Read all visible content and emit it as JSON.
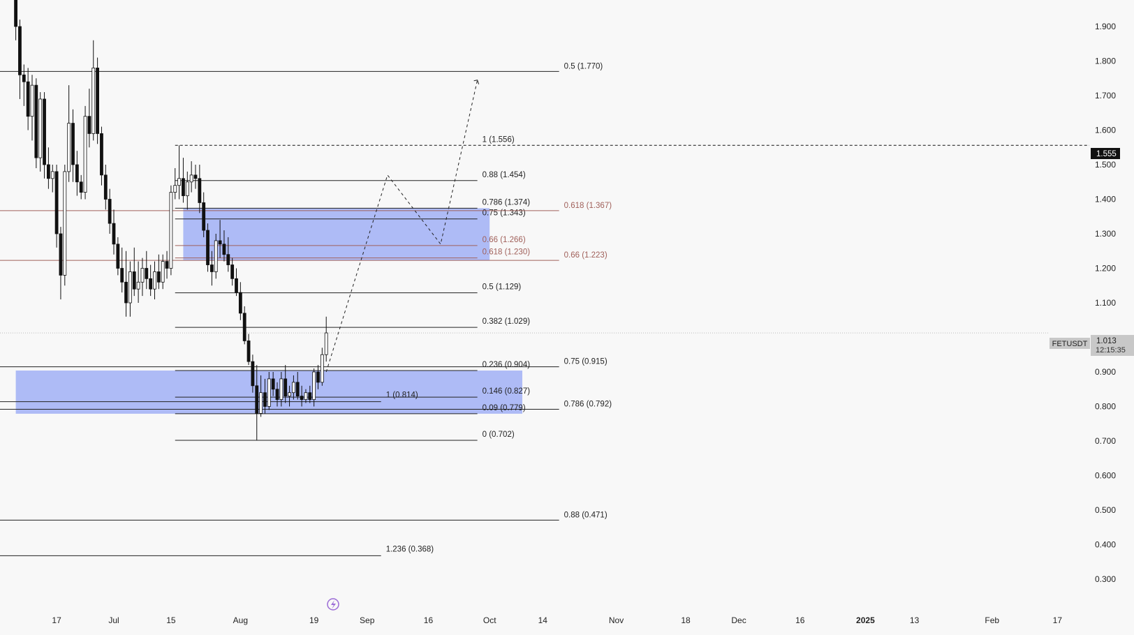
{
  "chart_data": {
    "type": "candlestick",
    "symbol": "FETUSDT",
    "last_price": "1.013",
    "countdown": "12:15:35",
    "marked_price": "1.555",
    "y_axis": {
      "ticks": [
        "1.900",
        "1.800",
        "1.700",
        "1.600",
        "1.500",
        "1.400",
        "1.300",
        "1.200",
        "1.100",
        "0.900",
        "0.800",
        "0.700",
        "0.600",
        "0.500",
        "0.400",
        "0.300"
      ],
      "ylim": [
        0.27,
        1.93
      ]
    },
    "x_axis": {
      "ticks": [
        {
          "label": "17",
          "date": "2024-06-17",
          "bold": false
        },
        {
          "label": "Jul",
          "date": "2024-07-01",
          "bold": false
        },
        {
          "label": "15",
          "date": "2024-07-15",
          "bold": false
        },
        {
          "label": "Aug",
          "date": "2024-08-01",
          "bold": false
        },
        {
          "label": "19",
          "date": "2024-08-19",
          "bold": false
        },
        {
          "label": "Sep",
          "date": "2024-09-01",
          "bold": false
        },
        {
          "label": "16",
          "date": "2024-09-16",
          "bold": false
        },
        {
          "label": "Oct",
          "date": "2024-10-01",
          "bold": false
        },
        {
          "label": "14",
          "date": "2024-10-14",
          "bold": false
        },
        {
          "label": "Nov",
          "date": "2024-11-01",
          "bold": false
        },
        {
          "label": "18",
          "date": "2024-11-18",
          "bold": false
        },
        {
          "label": "Dec",
          "date": "2024-12-01",
          "bold": false
        },
        {
          "label": "16",
          "date": "2024-12-16",
          "bold": false
        },
        {
          "label": "2025",
          "date": "2025-01-01",
          "bold": true
        },
        {
          "label": "13",
          "date": "2025-01-13",
          "bold": false
        },
        {
          "label": "Feb",
          "date": "2025-02-01",
          "bold": false
        },
        {
          "label": "17",
          "date": "2025-02-17",
          "bold": false
        }
      ]
    },
    "candles": [
      {
        "date": "2024-06-07",
        "open": 2.06,
        "high": 2.12,
        "low": 1.86,
        "close": 1.9
      },
      {
        "date": "2024-06-08",
        "open": 1.9,
        "high": 1.92,
        "low": 1.69,
        "close": 1.76
      },
      {
        "date": "2024-06-09",
        "open": 1.76,
        "high": 1.79,
        "low": 1.67,
        "close": 1.74
      },
      {
        "date": "2024-06-10",
        "open": 1.74,
        "high": 1.78,
        "low": 1.6,
        "close": 1.64
      },
      {
        "date": "2024-06-11",
        "open": 1.64,
        "high": 1.76,
        "low": 1.57,
        "close": 1.73
      },
      {
        "date": "2024-06-12",
        "open": 1.73,
        "high": 1.75,
        "low": 1.49,
        "close": 1.52
      },
      {
        "date": "2024-06-13",
        "open": 1.52,
        "high": 1.71,
        "low": 1.48,
        "close": 1.69
      },
      {
        "date": "2024-06-14",
        "open": 1.69,
        "high": 1.71,
        "low": 1.46,
        "close": 1.5
      },
      {
        "date": "2024-06-15",
        "open": 1.5,
        "high": 1.55,
        "low": 1.43,
        "close": 1.46
      },
      {
        "date": "2024-06-16",
        "open": 1.46,
        "high": 1.5,
        "low": 1.42,
        "close": 1.48
      },
      {
        "date": "2024-06-17",
        "open": 1.48,
        "high": 1.5,
        "low": 1.26,
        "close": 1.3
      },
      {
        "date": "2024-06-18",
        "open": 1.3,
        "high": 1.32,
        "low": 1.11,
        "close": 1.18
      },
      {
        "date": "2024-06-19",
        "open": 1.18,
        "high": 1.5,
        "low": 1.15,
        "close": 1.48
      },
      {
        "date": "2024-06-20",
        "open": 1.48,
        "high": 1.73,
        "low": 1.45,
        "close": 1.62
      },
      {
        "date": "2024-06-21",
        "open": 1.62,
        "high": 1.66,
        "low": 1.45,
        "close": 1.5
      },
      {
        "date": "2024-06-22",
        "open": 1.5,
        "high": 1.54,
        "low": 1.41,
        "close": 1.45
      },
      {
        "date": "2024-06-23",
        "open": 1.45,
        "high": 1.47,
        "low": 1.4,
        "close": 1.42
      },
      {
        "date": "2024-06-24",
        "open": 1.42,
        "high": 1.67,
        "low": 1.4,
        "close": 1.64
      },
      {
        "date": "2024-06-25",
        "open": 1.64,
        "high": 1.72,
        "low": 1.55,
        "close": 1.59
      },
      {
        "date": "2024-06-26",
        "open": 1.59,
        "high": 1.86,
        "low": 1.57,
        "close": 1.78
      },
      {
        "date": "2024-06-27",
        "open": 1.78,
        "high": 1.81,
        "low": 1.56,
        "close": 1.59
      },
      {
        "date": "2024-06-28",
        "open": 1.59,
        "high": 1.61,
        "low": 1.44,
        "close": 1.47
      },
      {
        "date": "2024-06-29",
        "open": 1.47,
        "high": 1.5,
        "low": 1.37,
        "close": 1.4
      },
      {
        "date": "2024-06-30",
        "open": 1.4,
        "high": 1.43,
        "low": 1.3,
        "close": 1.33
      },
      {
        "date": "2024-07-01",
        "open": 1.33,
        "high": 1.37,
        "low": 1.24,
        "close": 1.27
      },
      {
        "date": "2024-07-02",
        "open": 1.27,
        "high": 1.29,
        "low": 1.18,
        "close": 1.2
      },
      {
        "date": "2024-07-03",
        "open": 1.2,
        "high": 1.26,
        "low": 1.13,
        "close": 1.16
      },
      {
        "date": "2024-07-04",
        "open": 1.16,
        "high": 1.25,
        "low": 1.06,
        "close": 1.1
      },
      {
        "date": "2024-07-05",
        "open": 1.1,
        "high": 1.22,
        "low": 1.06,
        "close": 1.19
      },
      {
        "date": "2024-07-06",
        "open": 1.19,
        "high": 1.26,
        "low": 1.12,
        "close": 1.14
      },
      {
        "date": "2024-07-07",
        "open": 1.14,
        "high": 1.22,
        "low": 1.1,
        "close": 1.16
      },
      {
        "date": "2024-07-08",
        "open": 1.16,
        "high": 1.23,
        "low": 1.12,
        "close": 1.2
      },
      {
        "date": "2024-07-09",
        "open": 1.2,
        "high": 1.25,
        "low": 1.14,
        "close": 1.17
      },
      {
        "date": "2024-07-10",
        "open": 1.17,
        "high": 1.21,
        "low": 1.12,
        "close": 1.14
      },
      {
        "date": "2024-07-11",
        "open": 1.14,
        "high": 1.22,
        "low": 1.11,
        "close": 1.19
      },
      {
        "date": "2024-07-12",
        "open": 1.19,
        "high": 1.24,
        "low": 1.14,
        "close": 1.16
      },
      {
        "date": "2024-07-13",
        "open": 1.16,
        "high": 1.24,
        "low": 1.14,
        "close": 1.22
      },
      {
        "date": "2024-07-14",
        "open": 1.22,
        "high": 1.25,
        "low": 1.17,
        "close": 1.2
      },
      {
        "date": "2024-07-15",
        "open": 1.2,
        "high": 1.44,
        "low": 1.18,
        "close": 1.42
      },
      {
        "date": "2024-07-16",
        "open": 1.42,
        "high": 1.49,
        "low": 1.4,
        "close": 1.44
      },
      {
        "date": "2024-07-17",
        "open": 1.44,
        "high": 1.556,
        "low": 1.4,
        "close": 1.46
      },
      {
        "date": "2024-07-18",
        "open": 1.46,
        "high": 1.52,
        "low": 1.39,
        "close": 1.41
      },
      {
        "date": "2024-07-19",
        "open": 1.41,
        "high": 1.48,
        "low": 1.37,
        "close": 1.45
      },
      {
        "date": "2024-07-20",
        "open": 1.45,
        "high": 1.51,
        "low": 1.42,
        "close": 1.47
      },
      {
        "date": "2024-07-21",
        "open": 1.47,
        "high": 1.5,
        "low": 1.43,
        "close": 1.46
      },
      {
        "date": "2024-07-22",
        "open": 1.46,
        "high": 1.5,
        "low": 1.36,
        "close": 1.39
      },
      {
        "date": "2024-07-23",
        "open": 1.39,
        "high": 1.42,
        "low": 1.29,
        "close": 1.31
      },
      {
        "date": "2024-07-24",
        "open": 1.31,
        "high": 1.33,
        "low": 1.19,
        "close": 1.21
      },
      {
        "date": "2024-07-25",
        "open": 1.21,
        "high": 1.25,
        "low": 1.15,
        "close": 1.19
      },
      {
        "date": "2024-07-26",
        "open": 1.19,
        "high": 1.3,
        "low": 1.17,
        "close": 1.28
      },
      {
        "date": "2024-07-27",
        "open": 1.28,
        "high": 1.34,
        "low": 1.23,
        "close": 1.27
      },
      {
        "date": "2024-07-28",
        "open": 1.27,
        "high": 1.31,
        "low": 1.22,
        "close": 1.24
      },
      {
        "date": "2024-07-29",
        "open": 1.24,
        "high": 1.29,
        "low": 1.19,
        "close": 1.21
      },
      {
        "date": "2024-07-30",
        "open": 1.21,
        "high": 1.23,
        "low": 1.15,
        "close": 1.17
      },
      {
        "date": "2024-07-31",
        "open": 1.17,
        "high": 1.2,
        "low": 1.12,
        "close": 1.13
      },
      {
        "date": "2024-08-01",
        "open": 1.13,
        "high": 1.16,
        "low": 1.05,
        "close": 1.07
      },
      {
        "date": "2024-08-02",
        "open": 1.07,
        "high": 1.09,
        "low": 0.98,
        "close": 0.99
      },
      {
        "date": "2024-08-03",
        "open": 0.99,
        "high": 1.01,
        "low": 0.92,
        "close": 0.93
      },
      {
        "date": "2024-08-04",
        "open": 0.93,
        "high": 0.95,
        "low": 0.84,
        "close": 0.86
      },
      {
        "date": "2024-08-05",
        "open": 0.86,
        "high": 0.92,
        "low": 0.702,
        "close": 0.78
      },
      {
        "date": "2024-08-06",
        "open": 0.78,
        "high": 0.89,
        "low": 0.77,
        "close": 0.84
      },
      {
        "date": "2024-08-07",
        "open": 0.84,
        "high": 0.88,
        "low": 0.78,
        "close": 0.8
      },
      {
        "date": "2024-08-08",
        "open": 0.8,
        "high": 0.9,
        "low": 0.79,
        "close": 0.88
      },
      {
        "date": "2024-08-09",
        "open": 0.88,
        "high": 0.9,
        "low": 0.83,
        "close": 0.85
      },
      {
        "date": "2024-08-10",
        "open": 0.85,
        "high": 0.87,
        "low": 0.8,
        "close": 0.82
      },
      {
        "date": "2024-08-11",
        "open": 0.82,
        "high": 0.9,
        "low": 0.8,
        "close": 0.88
      },
      {
        "date": "2024-08-12",
        "open": 0.88,
        "high": 0.92,
        "low": 0.81,
        "close": 0.83
      },
      {
        "date": "2024-08-13",
        "open": 0.83,
        "high": 0.86,
        "low": 0.8,
        "close": 0.84
      },
      {
        "date": "2024-08-14",
        "open": 0.84,
        "high": 0.89,
        "low": 0.82,
        "close": 0.87
      },
      {
        "date": "2024-08-15",
        "open": 0.87,
        "high": 0.9,
        "low": 0.82,
        "close": 0.83
      },
      {
        "date": "2024-08-16",
        "open": 0.83,
        "high": 0.86,
        "low": 0.8,
        "close": 0.82
      },
      {
        "date": "2024-08-17",
        "open": 0.82,
        "high": 0.85,
        "low": 0.81,
        "close": 0.84
      },
      {
        "date": "2024-08-18",
        "open": 0.84,
        "high": 0.86,
        "low": 0.81,
        "close": 0.82
      },
      {
        "date": "2024-08-19",
        "open": 0.82,
        "high": 0.91,
        "low": 0.8,
        "close": 0.9
      },
      {
        "date": "2024-08-20",
        "open": 0.9,
        "high": 0.92,
        "low": 0.85,
        "close": 0.87
      },
      {
        "date": "2024-08-21",
        "open": 0.87,
        "high": 0.97,
        "low": 0.86,
        "close": 0.95
      },
      {
        "date": "2024-08-22",
        "open": 0.95,
        "high": 1.06,
        "low": 0.93,
        "close": 1.013
      }
    ],
    "fib_a": [
      {
        "label": "1 (1.556)",
        "value": 1.556
      },
      {
        "label": "0.88 (1.454)",
        "value": 1.454
      },
      {
        "label": "0.786 (1.374)",
        "value": 1.374
      },
      {
        "label": "0.75 (1.343)",
        "value": 1.343
      },
      {
        "label": "0.66 (1.266)",
        "value": 1.266,
        "color": "#a0605a"
      },
      {
        "label": "0.618 (1.230)",
        "value": 1.23,
        "color": "#a0605a"
      },
      {
        "label": "0.5 (1.129)",
        "value": 1.129
      },
      {
        "label": "0.382 (1.029)",
        "value": 1.029
      },
      {
        "label": "0.236 (0.904)",
        "value": 0.904
      },
      {
        "label": "0.146 (0.827)",
        "value": 0.827
      },
      {
        "label": "0.09 (0.779)",
        "value": 0.779
      },
      {
        "label": "0 (0.702)",
        "value": 0.702
      }
    ],
    "fib_b": [
      {
        "label": "0.5 (1.770)",
        "value": 1.77
      },
      {
        "label": "0.618 (1.367)",
        "value": 1.367,
        "color": "#a0605a"
      },
      {
        "label": "0.66 (1.223)",
        "value": 1.223,
        "color": "#a0605a"
      },
      {
        "label": "0.75 (0.915)",
        "value": 0.915
      },
      {
        "label": "0.786 (0.792)",
        "value": 0.792
      },
      {
        "label": "0.88 (0.471)",
        "value": 0.471
      }
    ],
    "fib_c": [
      {
        "label": "1 (0.814)",
        "value": 0.814
      },
      {
        "label": "1.236 (0.368)",
        "value": 0.368
      }
    ],
    "zones": [
      {
        "from_date": "2024-07-18",
        "to_date": "2024-10-01",
        "top": 1.374,
        "bottom": 1.223
      },
      {
        "from_date": "2024-06-07",
        "to_date": "2024-10-09",
        "top": 0.904,
        "bottom": 0.779
      }
    ],
    "projection": [
      {
        "date": "2024-08-22",
        "value": 0.9
      },
      {
        "date": "2024-09-06",
        "value": 1.47
      },
      {
        "date": "2024-09-19",
        "value": 1.27
      },
      {
        "date": "2024-09-28",
        "value": 1.745
      }
    ],
    "colors": {
      "candle_up": "#ffffff",
      "candle_down": "#111111",
      "zone": "#aab7f5",
      "fib_red": "#a0605a",
      "fib_line": "#222222"
    },
    "icons": {
      "bottom": "lightning-icon"
    }
  }
}
